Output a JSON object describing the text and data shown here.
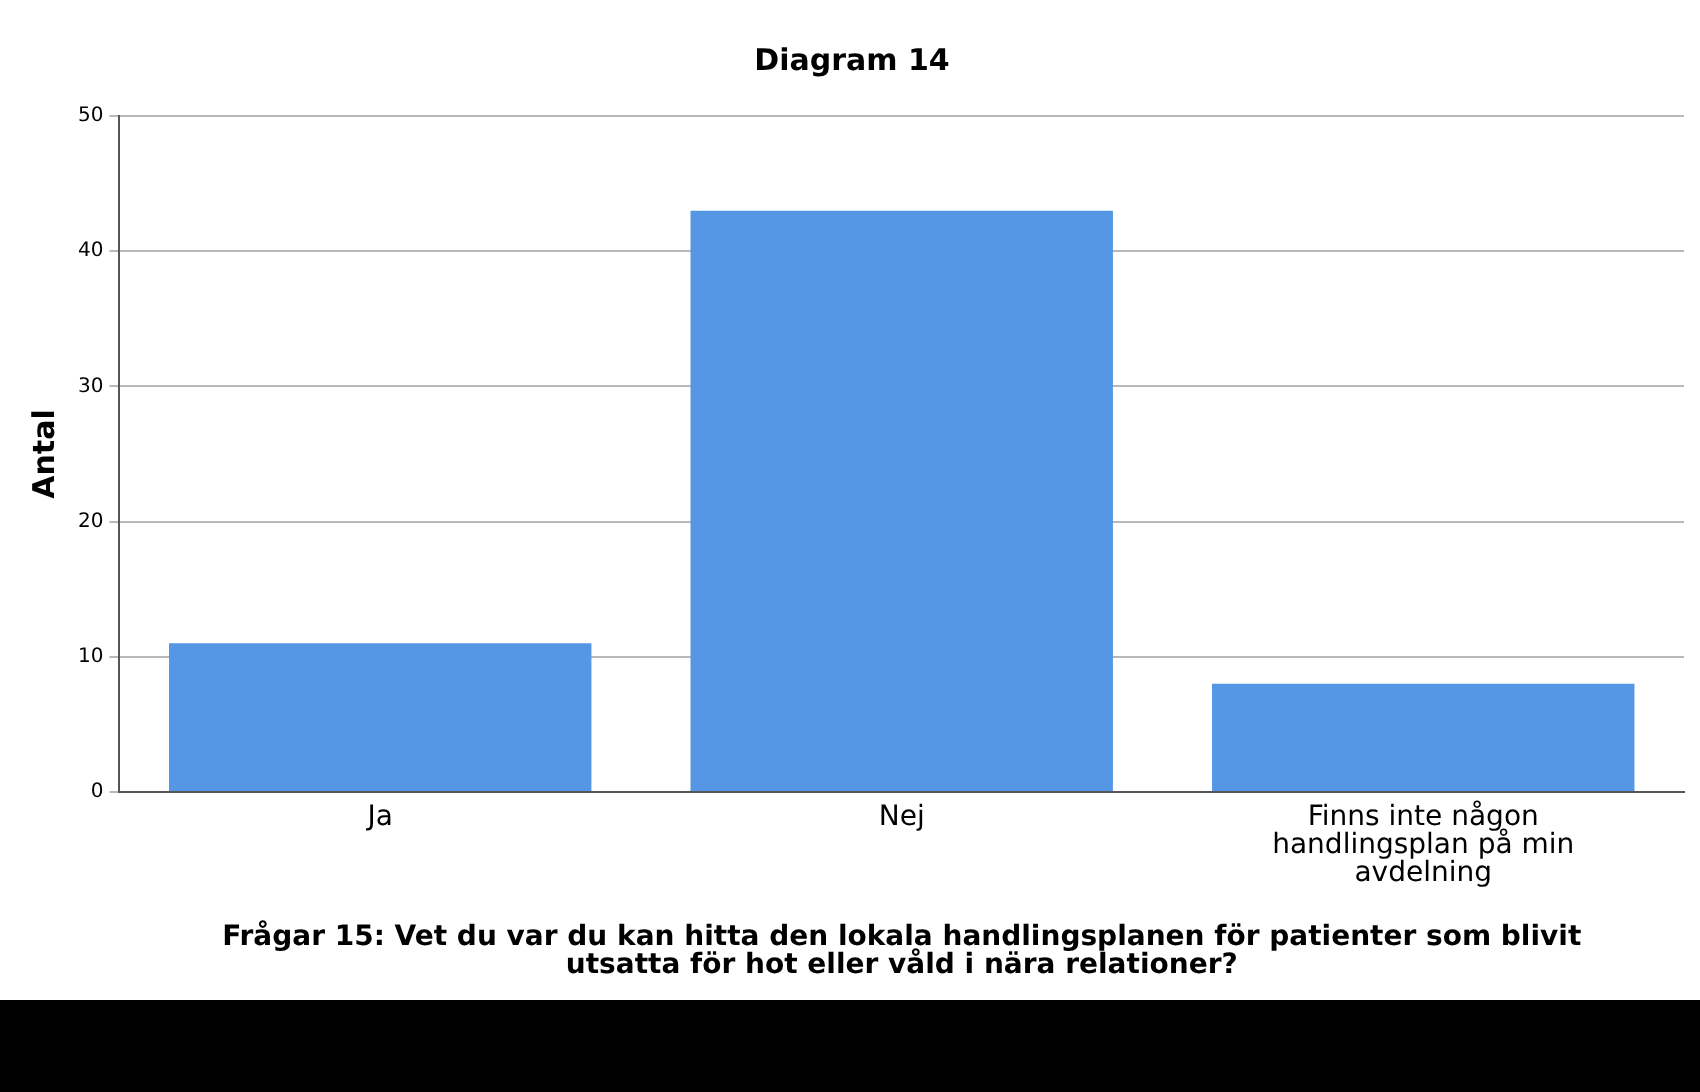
{
  "chart_data": {
    "type": "bar",
    "title": "Diagram 14",
    "xlabel": "Frågar 15: Vet du var du kan hitta den lokala handlingsplanen för patienter som blivit utsatta för hot eller våld i nära relationer?",
    "ylabel": "Antal",
    "categories": [
      "Ja",
      "Nej",
      "Finns inte någon handlingsplan på min avdelning"
    ],
    "values": [
      11,
      43,
      8
    ],
    "color": "#5597e5",
    "ylim": [
      0,
      50
    ],
    "yticks": [
      0,
      10,
      20,
      30,
      40,
      50
    ],
    "grid": "y",
    "legend": false
  }
}
